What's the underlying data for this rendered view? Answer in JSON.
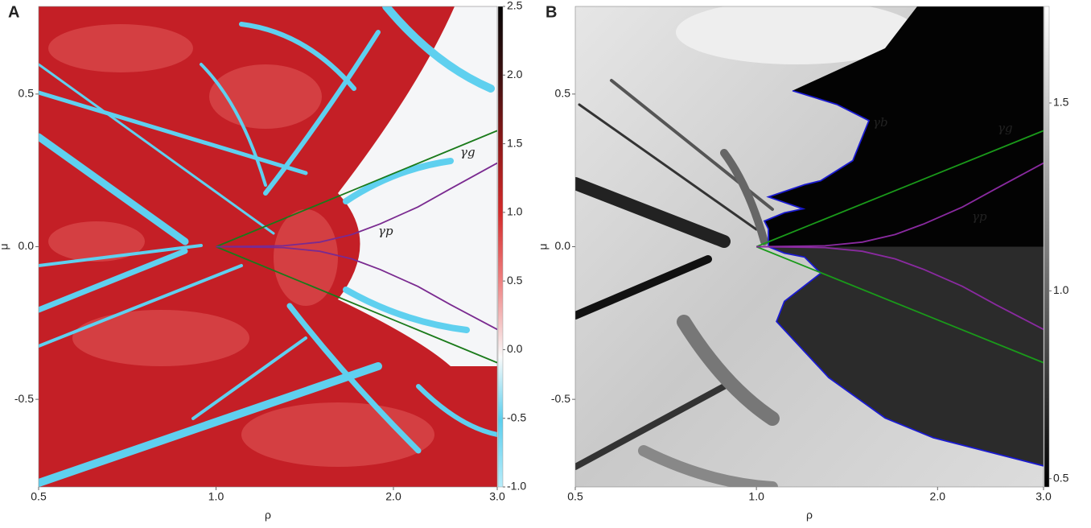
{
  "chart_data": [
    {
      "type": "heatmap",
      "panel_label": "A",
      "xlabel": "ρ",
      "ylabel": "μ",
      "xscale": "log",
      "xlim": [
        0.5,
        3.0
      ],
      "xticks": [
        0.5,
        {
          "value": 1,
          "label": "1.0"
        },
        {
          "value": 2,
          "label": "2.0"
        },
        {
          "value": 3,
          "label": "3.0"
        }
      ],
      "ylim": [
        -0.787,
        0.787
      ],
      "yticks": [
        0.5,
        {
          "value": 0,
          "label": "0.0"
        },
        -0.5
      ],
      "clim": [
        -1,
        2.5
      ],
      "cticks": [
        {
          "value": -1,
          "label": "-1.0"
        },
        -0.5,
        {
          "value": 0,
          "label": "0.0"
        },
        0.5,
        {
          "value": 1,
          "label": "1.0"
        },
        1.5,
        {
          "value": 2,
          "label": "2.0"
        },
        2.5
      ],
      "series": [
        {
          "name": "γg",
          "color": "#1a7a1a",
          "x": [
            1.0,
            3.0
          ],
          "values": [
            0,
            0.38
          ]
        },
        {
          "color": "#1a7a1a",
          "x": [
            1.0,
            3.0
          ],
          "values": [
            0,
            -0.38
          ]
        },
        {
          "name": "γp",
          "color": "#7a2a90",
          "x": [
            1.0,
            1.3,
            1.5,
            1.7,
            1.9,
            2.2,
            2.5,
            3.0
          ],
          "values": [
            0,
            0.003,
            0.015,
            0.04,
            0.075,
            0.13,
            0.19,
            0.274
          ]
        },
        {
          "color": "#7a2a90",
          "x": [
            1.0,
            1.3,
            1.5,
            1.7,
            1.9,
            2.2,
            2.5,
            3.0
          ],
          "values": [
            0,
            -0.003,
            -0.015,
            -0.04,
            -0.075,
            -0.13,
            -0.19,
            -0.271
          ]
        }
      ]
    },
    {
      "type": "heatmap",
      "panel_label": "B",
      "xlabel": "ρ",
      "ylabel": "μ",
      "xscale": "log",
      "xlim": [
        0.5,
        3.0
      ],
      "xticks": [
        0.5,
        {
          "value": 1,
          "label": "1.0"
        },
        {
          "value": 2,
          "label": "2.0"
        },
        {
          "value": 3,
          "label": "3.0"
        }
      ],
      "ylim": [
        -0.787,
        0.787
      ],
      "yticks": [
        0.5,
        {
          "value": 0,
          "label": "0.0"
        },
        -0.5
      ],
      "clim": [
        0.478,
        1.757
      ],
      "cticks": [
        0.5,
        {
          "value": 1,
          "label": "1.0"
        },
        1.5
      ],
      "series": [
        {
          "name": "γb",
          "color": "#1a1ad0",
          "x": [
            1.148,
            1.36,
            1.538,
            1.446,
            1.279,
            1.202,
            1.047,
            1.195,
            1.113,
            1.031,
            1.047,
            1.047,
            1.113,
            1.202,
            1.279,
            1.113,
            1.08,
            1.319,
            1.636,
            1.968,
            3.0
          ],
          "values": [
            0.511,
            0.466,
            0.413,
            0.282,
            0.216,
            0.203,
            0.163,
            0.124,
            0.111,
            0.084,
            0.058,
            0,
            -0.021,
            -0.034,
            -0.087,
            -0.179,
            -0.245,
            -0.429,
            -0.561,
            -0.626,
            -0.718
          ]
        },
        {
          "name": "γg",
          "color": "#1a9a1a",
          "x": [
            1.0,
            3.0
          ],
          "values": [
            0,
            0.38
          ]
        },
        {
          "color": "#1a9a1a",
          "x": [
            1.0,
            3.0
          ],
          "values": [
            0,
            -0.38
          ]
        },
        {
          "name": "γp",
          "color": "#8a2aa0",
          "x": [
            1.0,
            1.3,
            1.5,
            1.7,
            1.9,
            2.2,
            2.5,
            3.0
          ],
          "values": [
            0,
            0.003,
            0.015,
            0.04,
            0.075,
            0.13,
            0.19,
            0.274
          ]
        },
        {
          "color": "#8a2aa0",
          "x": [
            1.0,
            1.3,
            1.5,
            1.7,
            1.9,
            2.2,
            2.5,
            3.0
          ],
          "values": [
            0,
            -0.003,
            -0.015,
            -0.04,
            -0.075,
            -0.13,
            -0.19,
            -0.271
          ]
        }
      ]
    }
  ]
}
